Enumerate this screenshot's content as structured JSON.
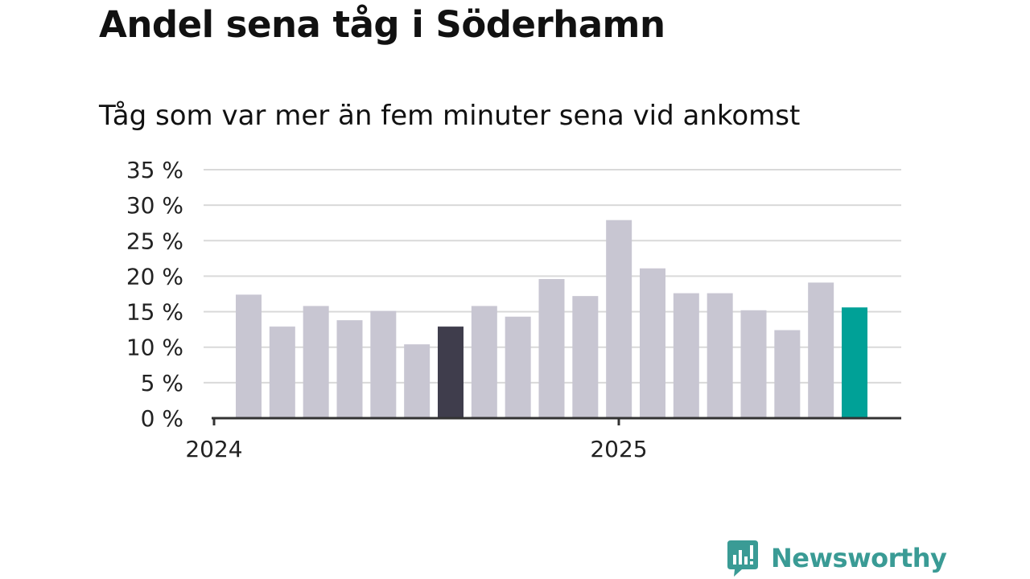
{
  "title": "Andel sena tåg i Söderhamn",
  "subtitle": "Tåg som var mer än fem minuter sena vid ankomst",
  "brand": "Newsworthy",
  "colors": {
    "bar_default": "#c8c6d2",
    "bar_dark": "#3f3d4c",
    "bar_accent": "#00a197",
    "grid": "#d9d9d9",
    "axis": "#333333",
    "brand": "#3a9b95"
  },
  "chart_data": {
    "type": "bar",
    "x_tick_labels": [
      "2024",
      "2025"
    ],
    "y_tick_labels": [
      "0 %",
      "5 %",
      "10 %",
      "15 %",
      "20 %",
      "25 %",
      "30 %",
      "35 %"
    ],
    "ylim": [
      0,
      35
    ],
    "grid": true,
    "values": [
      17.4,
      12.9,
      15.8,
      13.8,
      15.1,
      10.4,
      12.9,
      15.8,
      14.3,
      19.6,
      17.2,
      27.9,
      21.1,
      17.6,
      17.6,
      15.2,
      12.4,
      19.1,
      15.6
    ],
    "highlight": {
      "dark_index": 6,
      "accent_index": 18
    }
  }
}
